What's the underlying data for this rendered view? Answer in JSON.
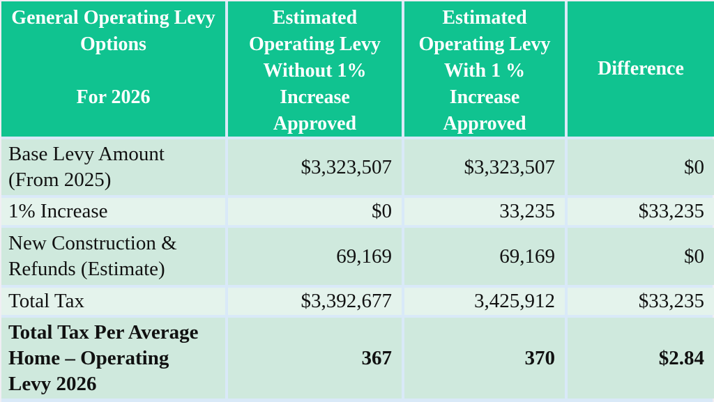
{
  "table": {
    "headers": [
      "General Operating Levy\nOptions\n\nFor 2026",
      "Estimated\nOperating Levy\nWithout 1%\nIncrease\nApproved",
      "Estimated\nOperating Levy\nWith 1 %\nIncrease\nApproved",
      "Difference"
    ],
    "rows": [
      {
        "label": "Base Levy Amount\n(From 2025)",
        "without_increase": "$3,323,507",
        "with_increase": "$3,323,507",
        "difference": "$0"
      },
      {
        "label": "1% Increase",
        "without_increase": "$0",
        "with_increase": "33,235",
        "difference": "$33,235"
      },
      {
        "label": "New Construction &\nRefunds (Estimate)",
        "without_increase": "69,169",
        "with_increase": "69,169",
        "difference": "$0"
      },
      {
        "label": "Total Tax",
        "without_increase": "$3,392,677",
        "with_increase": "3,425,912",
        "difference": "$33,235"
      },
      {
        "label": "Total Tax Per Average\nHome – Operating\nLevy 2026",
        "without_increase": "367",
        "with_increase": "370",
        "difference": "$2.84"
      }
    ]
  },
  "colors": {
    "header_background": "#10c390",
    "header_text": "#ffffff",
    "row_dark_background": "#cfe9dd",
    "row_light_background": "#e4f3ec",
    "gridline": "#d9e9f8",
    "body_text": "#111111"
  },
  "chart_data": {
    "type": "table",
    "title": "General Operating Levy Options For 2026",
    "columns": [
      "General Operating Levy Options For 2026",
      "Estimated Operating Levy Without 1% Increase Approved",
      "Estimated Operating Levy With 1 % Increase Approved",
      "Difference"
    ],
    "rows": [
      [
        "Base Levy Amount (From 2025)",
        "$3,323,507",
        "$3,323,507",
        "$0"
      ],
      [
        "1% Increase",
        "$0",
        "33,235",
        "$33,235"
      ],
      [
        "New Construction & Refunds (Estimate)",
        "69,169",
        "69,169",
        "$0"
      ],
      [
        "Total Tax",
        "$3,392,677",
        "3,425,912",
        "$33,235"
      ],
      [
        "Total Tax Per Average Home – Operating Levy 2026",
        "367",
        "370",
        "$2.84"
      ]
    ]
  }
}
